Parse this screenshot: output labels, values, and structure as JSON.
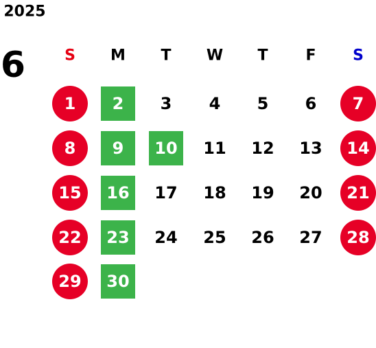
{
  "year": "2025",
  "month": "6",
  "weekdays": [
    {
      "text": "S",
      "color": "#e60012"
    },
    {
      "text": "M",
      "color": "#000000"
    },
    {
      "text": "T",
      "color": "#000000"
    },
    {
      "text": "W",
      "color": "#000000"
    },
    {
      "text": "T",
      "color": "#000000"
    },
    {
      "text": "F",
      "color": "#000000"
    },
    {
      "text": "S",
      "color": "#0000cc"
    }
  ],
  "weeks": [
    [
      {
        "text": "1",
        "shape": "circle"
      },
      {
        "text": "2",
        "shape": "square"
      },
      {
        "text": "3"
      },
      {
        "text": "4"
      },
      {
        "text": "5"
      },
      {
        "text": "6"
      },
      {
        "text": "7",
        "shape": "circle"
      }
    ],
    [
      {
        "text": "8",
        "shape": "circle"
      },
      {
        "text": "9",
        "shape": "square"
      },
      {
        "text": "10",
        "shape": "square"
      },
      {
        "text": "11"
      },
      {
        "text": "12"
      },
      {
        "text": "13"
      },
      {
        "text": "14",
        "shape": "circle"
      }
    ],
    [
      {
        "text": "15",
        "shape": "circle"
      },
      {
        "text": "16",
        "shape": "square"
      },
      {
        "text": "17"
      },
      {
        "text": "18"
      },
      {
        "text": "19"
      },
      {
        "text": "20"
      },
      {
        "text": "21",
        "shape": "circle"
      }
    ],
    [
      {
        "text": "22",
        "shape": "circle"
      },
      {
        "text": "23",
        "shape": "square"
      },
      {
        "text": "24"
      },
      {
        "text": "25"
      },
      {
        "text": "26"
      },
      {
        "text": "27"
      },
      {
        "text": "28",
        "shape": "circle"
      }
    ],
    [
      {
        "text": "29",
        "shape": "circle"
      },
      {
        "text": "30",
        "shape": "square"
      },
      null,
      null,
      null,
      null,
      null
    ]
  ],
  "colors": {
    "circle": "#e60026",
    "square": "#3cb34a",
    "text": "#000000",
    "text_on_shape": "#ffffff"
  }
}
